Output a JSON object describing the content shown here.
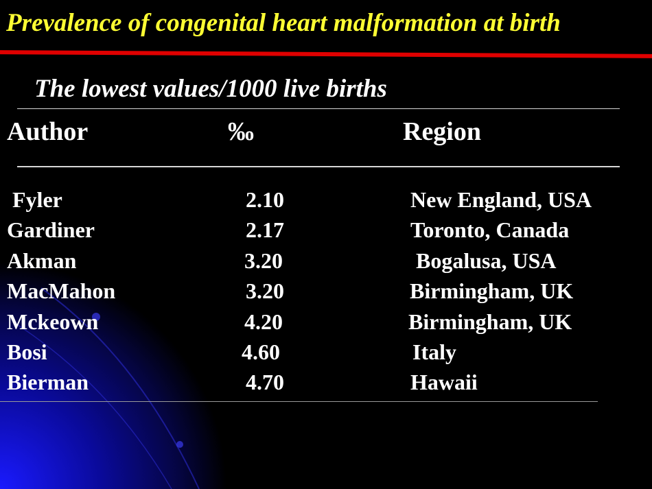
{
  "slide": {
    "title": "Prevalence of congenital heart malformation at birth",
    "subtitle": "The lowest values/1000 live births",
    "colors": {
      "title": "#ffff33",
      "rule": "#e00000",
      "text": "#ffffff",
      "background": "#000000"
    }
  },
  "table": {
    "headers": {
      "author": "Author",
      "value": "‰",
      "region": "Region"
    },
    "rows": [
      {
        "author": "Fyler",
        "value": "2.10",
        "region": "New England, USA"
      },
      {
        "author": "Gardiner",
        "value": "2.17",
        "region": "Toronto, Canada"
      },
      {
        "author": "Akman",
        "value": "3.20",
        "region": "Bogalusa, USA"
      },
      {
        "author": "MacMahon",
        "value": "3.20",
        "region": "Birmingham, UK"
      },
      {
        "author": "Mckeown",
        "value": "4.20",
        "region": "Birmingham, UK"
      },
      {
        "author": "Bosi",
        "value": "4.60",
        "region": "Italy"
      },
      {
        "author": "Bierman",
        "value": "4.70",
        "region": "Hawaii"
      }
    ]
  }
}
